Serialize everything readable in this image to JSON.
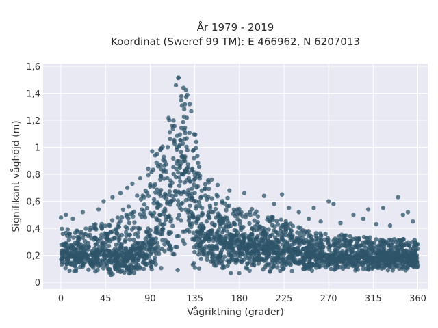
{
  "chart_data": {
    "type": "scatter",
    "title": "År 1979 - 2019",
    "subtitle": "Koordinat (Sweref 99 TM): E 466962, N 6207013",
    "xlabel": "Vågriktning (grader)",
    "ylabel": "Signifikant våghöjd (m)",
    "xlim": [
      -18,
      370
    ],
    "ylim": [
      -0.05,
      1.62
    ],
    "xticks": [
      0,
      45,
      90,
      135,
      180,
      225,
      270,
      315,
      360
    ],
    "xtick_labels": [
      "0",
      "45",
      "90",
      "135",
      "180",
      "225",
      "270",
      "315",
      "360"
    ],
    "yticks": [
      0,
      0.2,
      0.4,
      0.6,
      0.8,
      1,
      1.2,
      1.4,
      1.6
    ],
    "ytick_labels": [
      "0",
      "0,2",
      "0,4",
      "0,6",
      "0,8",
      "1",
      "1,2",
      "1,4",
      "1,6"
    ],
    "grid": true,
    "legend": "none",
    "marker_color": "#2e5469",
    "plot_background": "#e8e9f2",
    "envelope": {
      "x": [
        0,
        10,
        20,
        30,
        45,
        60,
        75,
        90,
        100,
        108,
        115,
        120,
        125,
        130,
        135,
        145,
        160,
        180,
        200,
        225,
        250,
        270,
        300,
        330,
        360
      ],
      "y_min": [
        0.08,
        0.07,
        0.06,
        0.05,
        0.05,
        0.04,
        0.04,
        0.04,
        0.05,
        0.05,
        0.05,
        0.05,
        0.05,
        0.05,
        0.05,
        0.05,
        0.05,
        0.06,
        0.07,
        0.07,
        0.08,
        0.08,
        0.08,
        0.08,
        0.08
      ],
      "y_max": [
        0.42,
        0.4,
        0.4,
        0.42,
        0.46,
        0.52,
        0.62,
        0.82,
        1.05,
        1.28,
        1.45,
        1.55,
        1.55,
        1.45,
        1.12,
        0.8,
        0.66,
        0.58,
        0.52,
        0.46,
        0.38,
        0.36,
        0.34,
        0.32,
        0.32
      ],
      "y_typical": [
        0.22,
        0.22,
        0.21,
        0.21,
        0.22,
        0.22,
        0.24,
        0.3,
        0.45,
        0.62,
        0.82,
        0.92,
        0.88,
        0.72,
        0.5,
        0.38,
        0.32,
        0.3,
        0.27,
        0.24,
        0.22,
        0.2,
        0.19,
        0.19,
        0.2
      ]
    },
    "outliers": [
      {
        "x": 0,
        "y": 0.48
      },
      {
        "x": 5,
        "y": 0.5
      },
      {
        "x": 12,
        "y": 0.47
      },
      {
        "x": 22,
        "y": 0.52
      },
      {
        "x": 38,
        "y": 0.54
      },
      {
        "x": 43,
        "y": 0.6
      },
      {
        "x": 52,
        "y": 0.63
      },
      {
        "x": 60,
        "y": 0.66
      },
      {
        "x": 67,
        "y": 0.7
      },
      {
        "x": 72,
        "y": 0.73
      },
      {
        "x": 80,
        "y": 0.77
      },
      {
        "x": 88,
        "y": 0.84
      },
      {
        "x": 92,
        "y": 0.97
      },
      {
        "x": 95,
        "y": 0.94
      },
      {
        "x": 98,
        "y": 0.86
      },
      {
        "x": 152,
        "y": 0.76
      },
      {
        "x": 158,
        "y": 0.72
      },
      {
        "x": 170,
        "y": 0.68
      },
      {
        "x": 185,
        "y": 0.66
      },
      {
        "x": 205,
        "y": 0.64
      },
      {
        "x": 215,
        "y": 0.58
      },
      {
        "x": 223,
        "y": 0.65
      },
      {
        "x": 230,
        "y": 0.55
      },
      {
        "x": 240,
        "y": 0.52
      },
      {
        "x": 250,
        "y": 0.47
      },
      {
        "x": 255,
        "y": 0.55
      },
      {
        "x": 262,
        "y": 0.45
      },
      {
        "x": 270,
        "y": 0.6
      },
      {
        "x": 275,
        "y": 0.58
      },
      {
        "x": 282,
        "y": 0.44
      },
      {
        "x": 295,
        "y": 0.5
      },
      {
        "x": 305,
        "y": 0.47
      },
      {
        "x": 310,
        "y": 0.54
      },
      {
        "x": 318,
        "y": 0.43
      },
      {
        "x": 325,
        "y": 0.55
      },
      {
        "x": 332,
        "y": 0.42
      },
      {
        "x": 340,
        "y": 0.63
      },
      {
        "x": 345,
        "y": 0.5
      },
      {
        "x": 350,
        "y": 0.52
      },
      {
        "x": 355,
        "y": 0.45
      }
    ]
  }
}
